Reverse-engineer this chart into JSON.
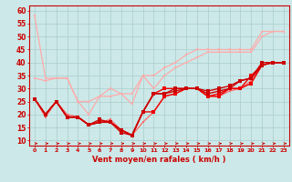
{
  "xlabel": "Vent moyen/en rafales ( km/h )",
  "bg_color": "#cce8e8",
  "grid_color": "#aacccc",
  "axis_color": "#cc0000",
  "label_color": "#cc0000",
  "x_values": [
    0,
    1,
    2,
    3,
    4,
    5,
    6,
    7,
    8,
    9,
    10,
    11,
    12,
    13,
    14,
    15,
    16,
    17,
    18,
    19,
    20,
    21,
    22,
    23
  ],
  "ylim": [
    8,
    62
  ],
  "yticks": [
    10,
    15,
    20,
    25,
    30,
    35,
    40,
    45,
    50,
    55,
    60
  ],
  "series": [
    {
      "color": "#ffaaaa",
      "linewidth": 0.9,
      "markersize": 2.0,
      "values": [
        58,
        34,
        34,
        34,
        25,
        25,
        27,
        27,
        28,
        28,
        35,
        35,
        38,
        40,
        43,
        45,
        45,
        45,
        45,
        45,
        45,
        52,
        52,
        52
      ]
    },
    {
      "color": "#ffaaaa",
      "linewidth": 0.9,
      "markersize": 2.0,
      "values": [
        34,
        33,
        34,
        34,
        25,
        20,
        27,
        30,
        28,
        24,
        35,
        30,
        35,
        38,
        40,
        42,
        44,
        44,
        44,
        44,
        44,
        50,
        52,
        52
      ]
    },
    {
      "color": "#ff6666",
      "linewidth": 0.9,
      "markersize": 2.0,
      "values": [
        26,
        19,
        25,
        20,
        19,
        16,
        17,
        18,
        14,
        12,
        17,
        21,
        27,
        28,
        30,
        30,
        27,
        27,
        29,
        30,
        33,
        39,
        40,
        40
      ]
    },
    {
      "color": "#ee0000",
      "linewidth": 1.0,
      "markersize": 2.5,
      "values": [
        26,
        20,
        25,
        19,
        19,
        16,
        17,
        17,
        14,
        12,
        21,
        21,
        27,
        28,
        30,
        30,
        27,
        27,
        30,
        30,
        35,
        39,
        40,
        40
      ]
    },
    {
      "color": "#ee0000",
      "linewidth": 1.0,
      "markersize": 2.5,
      "values": [
        26,
        20,
        25,
        19,
        19,
        16,
        17,
        17,
        14,
        12,
        21,
        28,
        30,
        30,
        30,
        30,
        27,
        28,
        30,
        30,
        32,
        39,
        40,
        40
      ]
    },
    {
      "color": "#cc0000",
      "linewidth": 1.0,
      "markersize": 2.5,
      "values": [
        26,
        20,
        25,
        19,
        19,
        16,
        17,
        17,
        13,
        12,
        21,
        28,
        28,
        29,
        30,
        30,
        28,
        29,
        30,
        33,
        34,
        39,
        40,
        40
      ]
    },
    {
      "color": "#cc0000",
      "linewidth": 1.0,
      "markersize": 2.5,
      "values": [
        26,
        20,
        25,
        19,
        19,
        16,
        18,
        17,
        14,
        12,
        21,
        28,
        28,
        30,
        30,
        30,
        29,
        30,
        31,
        33,
        34,
        40,
        40,
        40
      ]
    }
  ]
}
